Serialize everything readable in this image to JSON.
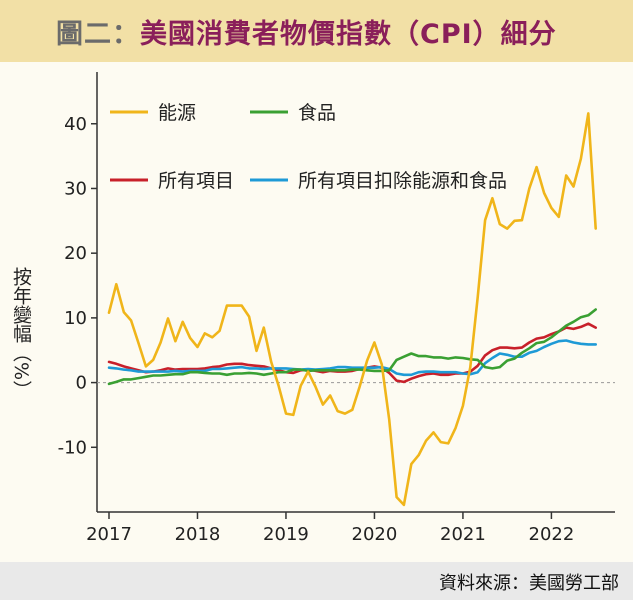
{
  "header": {
    "prefix": "圖二：",
    "title": "美國消費者物價指數（CPI）細分"
  },
  "source": "資料來源：美國勞工部",
  "colors": {
    "energy": "#f0b51a",
    "food": "#3aa033",
    "all_items": "#c8202a",
    "core": "#1e9ad6",
    "title_bg": "#f2e0a6",
    "title_text": "#8a1f5a"
  },
  "chart_data": {
    "type": "line",
    "title": "美國消費者物價指數（CPI）細分",
    "ylabel": "按年變幅（%）",
    "xlabel": "",
    "ylim": [
      -20,
      48
    ],
    "yticks": [
      -10,
      0,
      10,
      20,
      30,
      40
    ],
    "ytick_labels": [
      "-10",
      "0",
      "10",
      "20",
      "30",
      "40"
    ],
    "xticks": [
      2017,
      2018,
      2019,
      2020,
      2021,
      2022
    ],
    "xtick_labels": [
      "2017",
      "2018",
      "2019",
      "2020",
      "2021",
      "2022"
    ],
    "xlim": [
      2017.0,
      2022.583
    ],
    "zero_line": "dashed",
    "grid": false,
    "legend_position": "top-left",
    "series": [
      {
        "name": "能源",
        "color": "#f0b51a",
        "x": [
          2017.0,
          2017.083,
          2017.167,
          2017.25,
          2017.333,
          2017.417,
          2017.5,
          2017.583,
          2017.667,
          2017.75,
          2017.833,
          2017.917,
          2018.0,
          2018.083,
          2018.167,
          2018.25,
          2018.333,
          2018.417,
          2018.5,
          2018.583,
          2018.667,
          2018.75,
          2018.833,
          2018.917,
          2019.0,
          2019.083,
          2019.167,
          2019.25,
          2019.333,
          2019.417,
          2019.5,
          2019.583,
          2019.667,
          2019.75,
          2019.833,
          2019.917,
          2020.0,
          2020.083,
          2020.167,
          2020.25,
          2020.333,
          2020.417,
          2020.5,
          2020.583,
          2020.667,
          2020.75,
          2020.833,
          2020.917,
          2021.0,
          2021.083,
          2021.167,
          2021.25,
          2021.333,
          2021.417,
          2021.5,
          2021.583,
          2021.667,
          2021.75,
          2021.833,
          2021.917,
          2022.0,
          2022.083,
          2022.167,
          2022.25,
          2022.333,
          2022.417,
          2022.5
        ],
        "values": [
          10.8,
          15.2,
          10.9,
          9.6,
          6.1,
          2.5,
          3.5,
          6.2,
          9.9,
          6.4,
          9.4,
          6.9,
          5.5,
          7.6,
          7.0,
          8.0,
          11.9,
          11.9,
          11.9,
          10.2,
          4.9,
          8.5,
          3.2,
          -0.5,
          -4.8,
          -5.0,
          -0.5,
          1.7,
          -0.6,
          -3.4,
          -2.0,
          -4.4,
          -4.8,
          -4.2,
          -0.6,
          3.4,
          6.2,
          2.8,
          -5.7,
          -17.7,
          -18.9,
          -12.6,
          -11.2,
          -9.0,
          -7.7,
          -9.2,
          -9.4,
          -7.0,
          -3.6,
          2.4,
          13.2,
          25.1,
          28.5,
          24.5,
          23.8,
          25.0,
          25.1,
          30.0,
          33.3,
          29.3,
          27.0,
          25.6,
          32.0,
          30.3,
          34.6,
          41.6,
          23.8
        ]
      },
      {
        "name": "食品",
        "color": "#3aa033",
        "x": [
          2017.0,
          2017.083,
          2017.167,
          2017.25,
          2017.333,
          2017.417,
          2017.5,
          2017.583,
          2017.667,
          2017.75,
          2017.833,
          2017.917,
          2018.0,
          2018.083,
          2018.167,
          2018.25,
          2018.333,
          2018.417,
          2018.5,
          2018.583,
          2018.667,
          2018.75,
          2018.833,
          2018.917,
          2019.0,
          2019.083,
          2019.167,
          2019.25,
          2019.333,
          2019.417,
          2019.5,
          2019.583,
          2019.667,
          2019.75,
          2019.833,
          2019.917,
          2020.0,
          2020.083,
          2020.167,
          2020.25,
          2020.333,
          2020.417,
          2020.5,
          2020.583,
          2020.667,
          2020.75,
          2020.833,
          2020.917,
          2021.0,
          2021.083,
          2021.167,
          2021.25,
          2021.333,
          2021.417,
          2021.5,
          2021.583,
          2021.667,
          2021.75,
          2021.833,
          2021.917,
          2022.0,
          2022.083,
          2022.167,
          2022.25,
          2022.333,
          2022.417,
          2022.5
        ],
        "values": [
          -0.2,
          0.1,
          0.5,
          0.5,
          0.7,
          0.9,
          1.1,
          1.1,
          1.2,
          1.3,
          1.3,
          1.6,
          1.6,
          1.5,
          1.4,
          1.4,
          1.2,
          1.4,
          1.4,
          1.5,
          1.4,
          1.2,
          1.4,
          1.6,
          1.6,
          2.0,
          2.0,
          1.8,
          1.9,
          1.9,
          1.9,
          1.9,
          1.9,
          2.0,
          2.0,
          1.9,
          1.8,
          1.8,
          1.9,
          3.5,
          4.0,
          4.5,
          4.1,
          4.1,
          3.9,
          3.9,
          3.7,
          3.9,
          3.8,
          3.6,
          3.5,
          2.4,
          2.2,
          2.4,
          3.4,
          3.7,
          4.6,
          5.3,
          6.1,
          6.3,
          7.0,
          7.9,
          8.8,
          9.4,
          10.1,
          10.4,
          11.3
        ]
      },
      {
        "name": "所有項目",
        "color": "#c8202a",
        "x": [
          2017.0,
          2017.083,
          2017.167,
          2017.25,
          2017.333,
          2017.417,
          2017.5,
          2017.583,
          2017.667,
          2017.75,
          2017.833,
          2017.917,
          2018.0,
          2018.083,
          2018.167,
          2018.25,
          2018.333,
          2018.417,
          2018.5,
          2018.583,
          2018.667,
          2018.75,
          2018.833,
          2018.917,
          2019.0,
          2019.083,
          2019.167,
          2019.25,
          2019.333,
          2019.417,
          2019.5,
          2019.583,
          2019.667,
          2019.75,
          2019.833,
          2019.917,
          2020.0,
          2020.083,
          2020.167,
          2020.25,
          2020.333,
          2020.417,
          2020.5,
          2020.583,
          2020.667,
          2020.75,
          2020.833,
          2020.917,
          2021.0,
          2021.083,
          2021.167,
          2021.25,
          2021.333,
          2021.417,
          2021.5,
          2021.583,
          2021.667,
          2021.75,
          2021.833,
          2021.917,
          2022.0,
          2022.083,
          2022.167,
          2022.25,
          2022.333,
          2022.417,
          2022.5
        ],
        "values": [
          3.2,
          2.9,
          2.5,
          2.2,
          1.9,
          1.6,
          1.7,
          1.9,
          2.2,
          2.0,
          2.1,
          2.1,
          2.1,
          2.2,
          2.4,
          2.5,
          2.8,
          2.9,
          2.9,
          2.7,
          2.6,
          2.5,
          2.2,
          1.9,
          1.6,
          1.5,
          1.9,
          2.0,
          1.8,
          1.6,
          1.8,
          1.7,
          1.7,
          1.8,
          2.1,
          2.3,
          2.5,
          2.3,
          1.5,
          0.3,
          0.1,
          0.6,
          1.0,
          1.3,
          1.4,
          1.2,
          1.2,
          1.4,
          1.4,
          1.7,
          2.6,
          4.2,
          5.0,
          5.4,
          5.4,
          5.3,
          5.4,
          6.2,
          6.8,
          7.0,
          7.5,
          7.9,
          8.5,
          8.3,
          8.6,
          9.1,
          8.5
        ]
      },
      {
        "name": "所有項目扣除能源和食品",
        "color": "#1e9ad6",
        "x": [
          2017.0,
          2017.083,
          2017.167,
          2017.25,
          2017.333,
          2017.417,
          2017.5,
          2017.583,
          2017.667,
          2017.75,
          2017.833,
          2017.917,
          2018.0,
          2018.083,
          2018.167,
          2018.25,
          2018.333,
          2018.417,
          2018.5,
          2018.583,
          2018.667,
          2018.75,
          2018.833,
          2018.917,
          2019.0,
          2019.083,
          2019.167,
          2019.25,
          2019.333,
          2019.417,
          2019.5,
          2019.583,
          2019.667,
          2019.75,
          2019.833,
          2019.917,
          2020.0,
          2020.083,
          2020.167,
          2020.25,
          2020.333,
          2020.417,
          2020.5,
          2020.583,
          2020.667,
          2020.75,
          2020.833,
          2020.917,
          2021.0,
          2021.083,
          2021.167,
          2021.25,
          2021.333,
          2021.417,
          2021.5,
          2021.583,
          2021.667,
          2021.75,
          2021.833,
          2021.917,
          2022.0,
          2022.083,
          2022.167,
          2022.25,
          2022.333,
          2022.417,
          2022.5
        ],
        "values": [
          2.3,
          2.2,
          2.0,
          1.9,
          1.7,
          1.7,
          1.7,
          1.7,
          1.7,
          1.8,
          1.7,
          1.8,
          1.8,
          1.8,
          2.1,
          2.1,
          2.2,
          2.3,
          2.4,
          2.2,
          2.2,
          2.1,
          2.2,
          2.2,
          2.2,
          2.1,
          2.0,
          2.1,
          2.0,
          2.1,
          2.2,
          2.4,
          2.4,
          2.3,
          2.3,
          2.3,
          2.3,
          2.4,
          2.1,
          1.4,
          1.2,
          1.2,
          1.6,
          1.7,
          1.7,
          1.6,
          1.6,
          1.6,
          1.4,
          1.3,
          1.6,
          3.0,
          3.8,
          4.5,
          4.3,
          4.0,
          4.0,
          4.6,
          4.9,
          5.5,
          6.0,
          6.4,
          6.5,
          6.2,
          6.0,
          5.9,
          5.9
        ]
      }
    ]
  }
}
